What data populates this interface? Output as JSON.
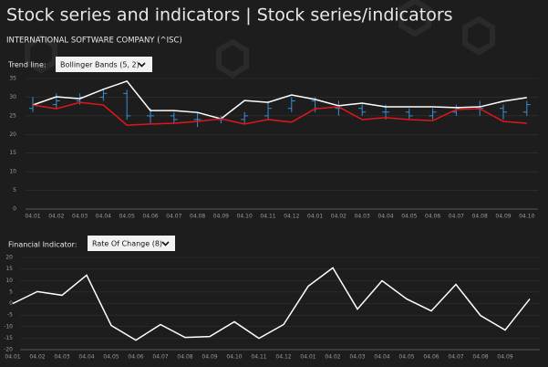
{
  "header": {
    "title": "Stock series and indicators | Stock series/indicators",
    "subtitle": "INTERNATIONAL SOFTWARE COMPANY (^ISC)"
  },
  "trend_control": {
    "label": "Trend line:",
    "selected": "Bollinger Bands (5, 2)"
  },
  "indicator_control": {
    "label": "Financial Indicator:",
    "selected": "Rate Of Change (8)"
  },
  "chart_data": [
    {
      "type": "ohlc",
      "categories": [
        "04.01",
        "04.02",
        "04.03",
        "04.04",
        "04.05",
        "04.06",
        "04.07",
        "04.08",
        "04.09",
        "04.10",
        "04.11",
        "04.12",
        "04.01",
        "04.02",
        "04.03",
        "04.04",
        "04.05",
        "04.06",
        "04.07",
        "04.08",
        "04.09",
        "04.10"
      ],
      "ohlc": {
        "color": "#3a8fd6",
        "open": [
          27,
          28,
          29,
          30,
          31,
          25,
          25,
          24,
          24,
          24,
          25,
          27,
          29,
          27,
          27,
          26,
          26,
          25,
          26,
          27,
          27,
          26
        ],
        "high": [
          30,
          31,
          31,
          32,
          32,
          27,
          26,
          26,
          25,
          26,
          29,
          30,
          30,
          29,
          28,
          28,
          27,
          27,
          28,
          29,
          28,
          29
        ],
        "low": [
          26,
          27,
          28,
          29,
          24,
          23,
          23,
          22,
          23,
          23,
          24,
          26,
          26,
          25,
          25,
          24,
          24,
          24,
          25,
          25,
          24,
          25
        ],
        "close": [
          28,
          29,
          30,
          31,
          25,
          25,
          24,
          24,
          24,
          25,
          27,
          29,
          27,
          27,
          26,
          26,
          25,
          26,
          27,
          27,
          26,
          28
        ]
      },
      "series": [
        {
          "color": "#ffffff",
          "values": [
            27.9,
            30.1,
            29.6,
            32.1,
            34.3,
            26.4,
            26.4,
            25.9,
            24.2,
            29.1,
            28.6,
            30.6,
            29.4,
            27.7,
            28.4,
            27.4,
            27.4,
            27.4,
            27.2,
            27.4,
            28.9,
            29.9
          ]
        },
        {
          "color": "#e0161c",
          "values": [
            27.9,
            26.9,
            28.6,
            27.9,
            22.5,
            22.8,
            23.0,
            23.5,
            24.2,
            22.8,
            24.0,
            23.3,
            26.9,
            27.4,
            24.0,
            24.5,
            24.0,
            23.7,
            26.7,
            26.9,
            23.5,
            23.0
          ]
        }
      ],
      "ylim": [
        0,
        35
      ],
      "yticks": [
        0,
        5,
        10,
        15,
        20,
        25,
        30,
        35
      ],
      "grid": true
    },
    {
      "type": "line",
      "categories": [
        "04.01",
        "04.02",
        "04.03",
        "04.04",
        "04.05",
        "04.06",
        "04.07",
        "04.08",
        "04.09",
        "04.10",
        "04.11",
        "04.12",
        "04.01",
        "04.02",
        "04.03",
        "04.04",
        "04.05",
        "04.06",
        "04.07",
        "04.08",
        "04.09",
        null
      ],
      "series": [
        {
          "color": "#ffffff",
          "values": [
            0,
            5.2,
            3.6,
            12.3,
            -9.5,
            -15.9,
            -9.1,
            -14.7,
            -14.3,
            -7.9,
            -15.1,
            -9.1,
            7.5,
            15.5,
            -2.4,
            9.9,
            2.0,
            -3.2,
            8.3,
            -5.2,
            -11.5,
            2.0
          ]
        }
      ],
      "ylim": [
        -20,
        20
      ],
      "yticks": [
        -20,
        -15,
        -10,
        -5,
        0,
        5,
        10,
        15,
        20
      ],
      "grid": true
    }
  ]
}
